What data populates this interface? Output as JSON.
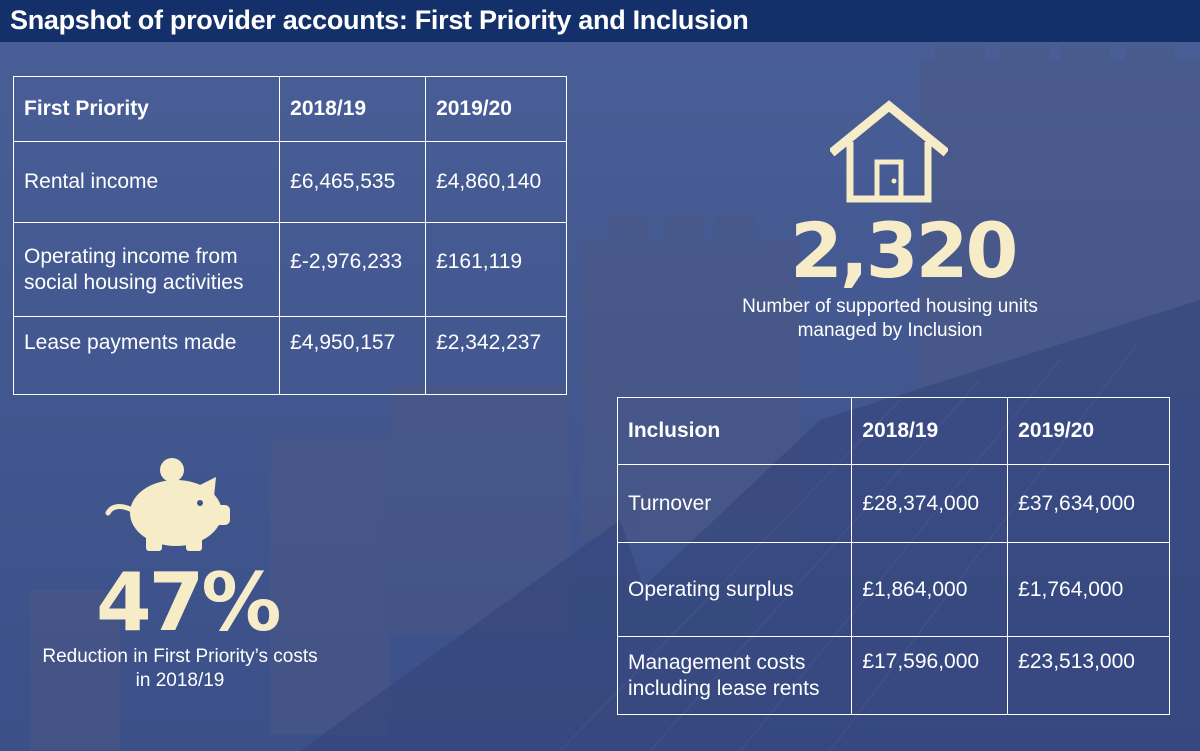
{
  "header": {
    "title": "Snapshot of provider accounts: First Priority and Inclusion"
  },
  "table_first_priority": {
    "headers": [
      "First Priority",
      "2018/19",
      "2019/20"
    ],
    "rows": [
      [
        "Rental income",
        "£6,465,535",
        "£4,860,140"
      ],
      [
        "Operating income from social housing activities",
        "£-2,976,233",
        "£161,119"
      ],
      [
        "Lease payments made",
        "£4,950,157",
        "£2,342,237"
      ]
    ]
  },
  "table_inclusion": {
    "headers": [
      "Inclusion",
      "2018/19",
      "2019/20"
    ],
    "rows": [
      [
        "Turnover",
        "£28,374,000",
        "£37,634,000"
      ],
      [
        "Operating surplus",
        "£1,864,000",
        "£1,764,000"
      ],
      [
        "Management costs including lease rents",
        "£17,596,000",
        "£23,513,000"
      ]
    ]
  },
  "stat_units": {
    "value": "2,320",
    "caption": "Number of supported housing units managed by Inclusion",
    "icon": "house-icon"
  },
  "stat_reduction": {
    "value": "47%",
    "caption": "Reduction in First Priority’s costs in 2018/19",
    "icon": "piggy-bank-icon"
  },
  "colors": {
    "title_bar": "#14306a",
    "background": "#3d5288",
    "highlight": "#f6ecc8"
  }
}
